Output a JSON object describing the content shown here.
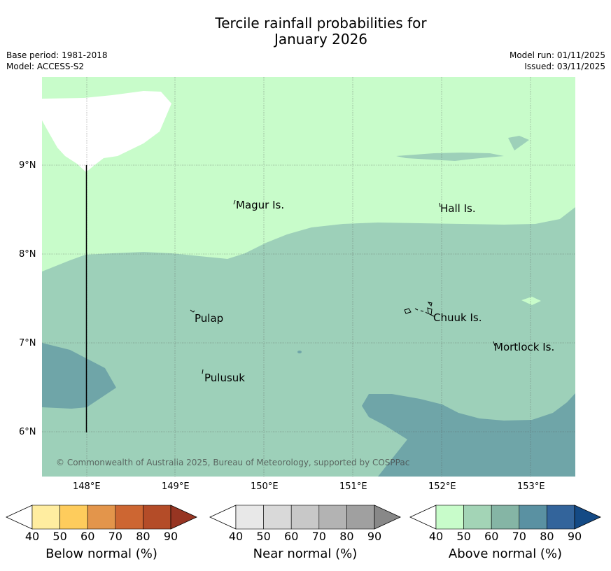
{
  "title_line1": "Tercile rainfall probabilities for",
  "title_line2": "January 2026",
  "base_period": "Base period: 1981-2018",
  "model": "Model: ACCESS-S2",
  "model_run": "Model run: 01/11/2025",
  "issued": "Issued: 03/11/2025",
  "copyright": "© Commonwealth of Australia 2025, Bureau of Meteorology, supported by COSPPac",
  "y_ticks": [
    "9°N",
    "8°N",
    "7°N",
    "6°N"
  ],
  "x_ticks": [
    "148°E",
    "149°E",
    "150°E",
    "151°E",
    "152°E",
    "153°E"
  ],
  "places": [
    "Magur Is.",
    "Hall Is.",
    "Pulap",
    "Chuuk Is.",
    "Mortlock Is.",
    "Pulusuk"
  ],
  "colorbars": [
    {
      "label": "Below normal (%)",
      "ticks": [
        "40",
        "50",
        "60",
        "70",
        "80",
        "90"
      ],
      "colors": [
        "#ffffff",
        "#ffeda0",
        "#fecc5c",
        "#e3954b",
        "#cd6632",
        "#b44c28",
        "#973522"
      ]
    },
    {
      "label": "Near normal (%)",
      "ticks": [
        "40",
        "50",
        "60",
        "70",
        "80",
        "90"
      ],
      "colors": [
        "#ffffff",
        "#e8e8e8",
        "#d9d9d9",
        "#c8c8c8",
        "#b3b3b3",
        "#a0a0a0",
        "#888888"
      ]
    },
    {
      "label": "Above normal (%)",
      "ticks": [
        "40",
        "50",
        "60",
        "70",
        "80",
        "90"
      ],
      "colors": [
        "#ffffff",
        "#c8fcca",
        "#a3d4b6",
        "#85b5a5",
        "#5a91a2",
        "#33649b",
        "#144a85"
      ]
    }
  ],
  "colors": {
    "above_40_50": "#c8fcca",
    "above_50_60": "#9dd0b9",
    "above_60_70": "#6fa5a8",
    "below_40": "#ffffff"
  }
}
